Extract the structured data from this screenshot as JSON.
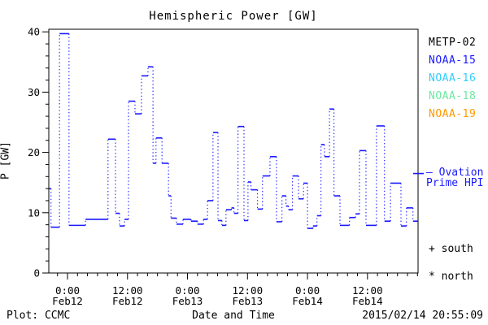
{
  "title": "Hemispheric Power [GW]",
  "y_axis": {
    "label": "P [GW]",
    "ticks": [
      0,
      10,
      20,
      30,
      40
    ],
    "minor_step_gw": 2,
    "range": [
      0,
      40
    ]
  },
  "x_axis": {
    "label": "Date and Time",
    "minor_step_hours": 2,
    "range_hours": [
      -3.7,
      70.1
    ],
    "ticks": [
      {
        "time": "0:00",
        "date": "Feb12",
        "t": 0
      },
      {
        "time": "12:00",
        "date": "Feb12",
        "t": 12
      },
      {
        "time": "0:00",
        "date": "Feb13",
        "t": 24
      },
      {
        "time": "12:00",
        "date": "Feb13",
        "t": 36
      },
      {
        "time": "0:00",
        "date": "Feb14",
        "t": 48
      },
      {
        "time": "12:00",
        "date": "Feb14",
        "t": 60
      }
    ]
  },
  "legend": {
    "satellites": [
      {
        "label": "METP-02",
        "color": "#000000"
      },
      {
        "label": "NOAA-15",
        "color": "#1a1aff"
      },
      {
        "label": "NOAA-16",
        "color": "#33ccff"
      },
      {
        "label": "NOAA-18",
        "color": "#6ce9a0"
      },
      {
        "label": "NOAA-19",
        "color": "#ff9900"
      }
    ],
    "ovation": {
      "label_line1": "– Ovation",
      "label_line2": "Prime HPI",
      "color": "#1a1aff",
      "marker_value_gw": 16.5
    },
    "south_label": "+ south",
    "north_label": "* north"
  },
  "footer": {
    "plot_source": "Plot: CCMC",
    "timestamp": "2015/02/14 20:55:09"
  },
  "chart_data": {
    "type": "line",
    "style": "steps-with-dotted-connectors",
    "title": "Hemispheric Power [GW]",
    "xlabel": "Date and Time",
    "ylabel": "P [GW]",
    "ylim": [
      0,
      40
    ],
    "xlim_hours": [
      -3.7,
      70.1
    ],
    "x_unit": "hours since 2015-02-12 00:00 UT",
    "grid": false,
    "legend_position": "right",
    "ovation_prime_hpi_marker_gw": 16.5,
    "series": [
      {
        "name": "Hemispheric Power HPI",
        "color": "#1a1aff",
        "segments_start_end_gw": [
          [
            -3.7,
            -3.3,
            14.0
          ],
          [
            -3.3,
            -1.6,
            7.6
          ],
          [
            -1.6,
            0.3,
            39.7
          ],
          [
            0.3,
            3.6,
            7.9
          ],
          [
            3.6,
            8.1,
            8.9
          ],
          [
            8.1,
            9.6,
            22.2
          ],
          [
            9.6,
            10.4,
            9.9
          ],
          [
            10.4,
            11.4,
            7.8
          ],
          [
            11.4,
            12.2,
            8.9
          ],
          [
            12.2,
            13.5,
            28.5
          ],
          [
            13.5,
            14.8,
            26.4
          ],
          [
            14.8,
            16.1,
            32.7
          ],
          [
            16.1,
            17.1,
            34.2
          ],
          [
            17.1,
            17.7,
            18.2
          ],
          [
            17.7,
            18.9,
            22.4
          ],
          [
            18.9,
            20.2,
            18.2
          ],
          [
            20.2,
            20.7,
            12.8
          ],
          [
            20.7,
            21.8,
            9.1
          ],
          [
            21.8,
            23.1,
            8.1
          ],
          [
            23.1,
            24.7,
            8.9
          ],
          [
            24.7,
            26.0,
            8.6
          ],
          [
            26.0,
            27.2,
            8.1
          ],
          [
            27.2,
            28.0,
            8.9
          ],
          [
            28.0,
            29.1,
            12.0
          ],
          [
            29.1,
            30.1,
            23.3
          ],
          [
            30.1,
            30.9,
            8.7
          ],
          [
            30.9,
            31.7,
            7.9
          ],
          [
            31.7,
            32.8,
            10.5
          ],
          [
            32.8,
            33.3,
            10.8
          ],
          [
            33.3,
            34.1,
            9.9
          ],
          [
            34.1,
            35.3,
            24.3
          ],
          [
            35.3,
            36.1,
            8.7
          ],
          [
            36.1,
            36.7,
            15.1
          ],
          [
            36.7,
            38.0,
            13.8
          ],
          [
            38.0,
            39.0,
            10.6
          ],
          [
            39.0,
            40.5,
            16.1
          ],
          [
            40.5,
            41.8,
            19.3
          ],
          [
            41.8,
            42.9,
            8.5
          ],
          [
            42.9,
            43.7,
            12.8
          ],
          [
            43.7,
            44.2,
            11.1
          ],
          [
            44.2,
            45.0,
            10.5
          ],
          [
            45.0,
            46.2,
            16.1
          ],
          [
            46.2,
            47.2,
            12.3
          ],
          [
            47.2,
            48.0,
            14.9
          ],
          [
            48.0,
            49.1,
            7.4
          ],
          [
            49.1,
            49.9,
            7.8
          ],
          [
            49.9,
            50.7,
            9.5
          ],
          [
            50.7,
            51.4,
            21.3
          ],
          [
            51.4,
            52.4,
            19.3
          ],
          [
            52.4,
            53.3,
            27.2
          ],
          [
            53.3,
            54.5,
            12.8
          ],
          [
            54.5,
            56.4,
            7.9
          ],
          [
            56.4,
            57.6,
            9.2
          ],
          [
            57.6,
            58.4,
            9.8
          ],
          [
            58.4,
            59.7,
            20.3
          ],
          [
            59.7,
            61.8,
            7.9
          ],
          [
            61.8,
            63.4,
            24.4
          ],
          [
            63.4,
            64.6,
            8.6
          ],
          [
            64.6,
            66.7,
            14.9
          ],
          [
            66.7,
            67.8,
            7.8
          ],
          [
            67.8,
            69.1,
            10.8
          ],
          [
            69.1,
            70.1,
            8.6
          ]
        ]
      }
    ]
  }
}
